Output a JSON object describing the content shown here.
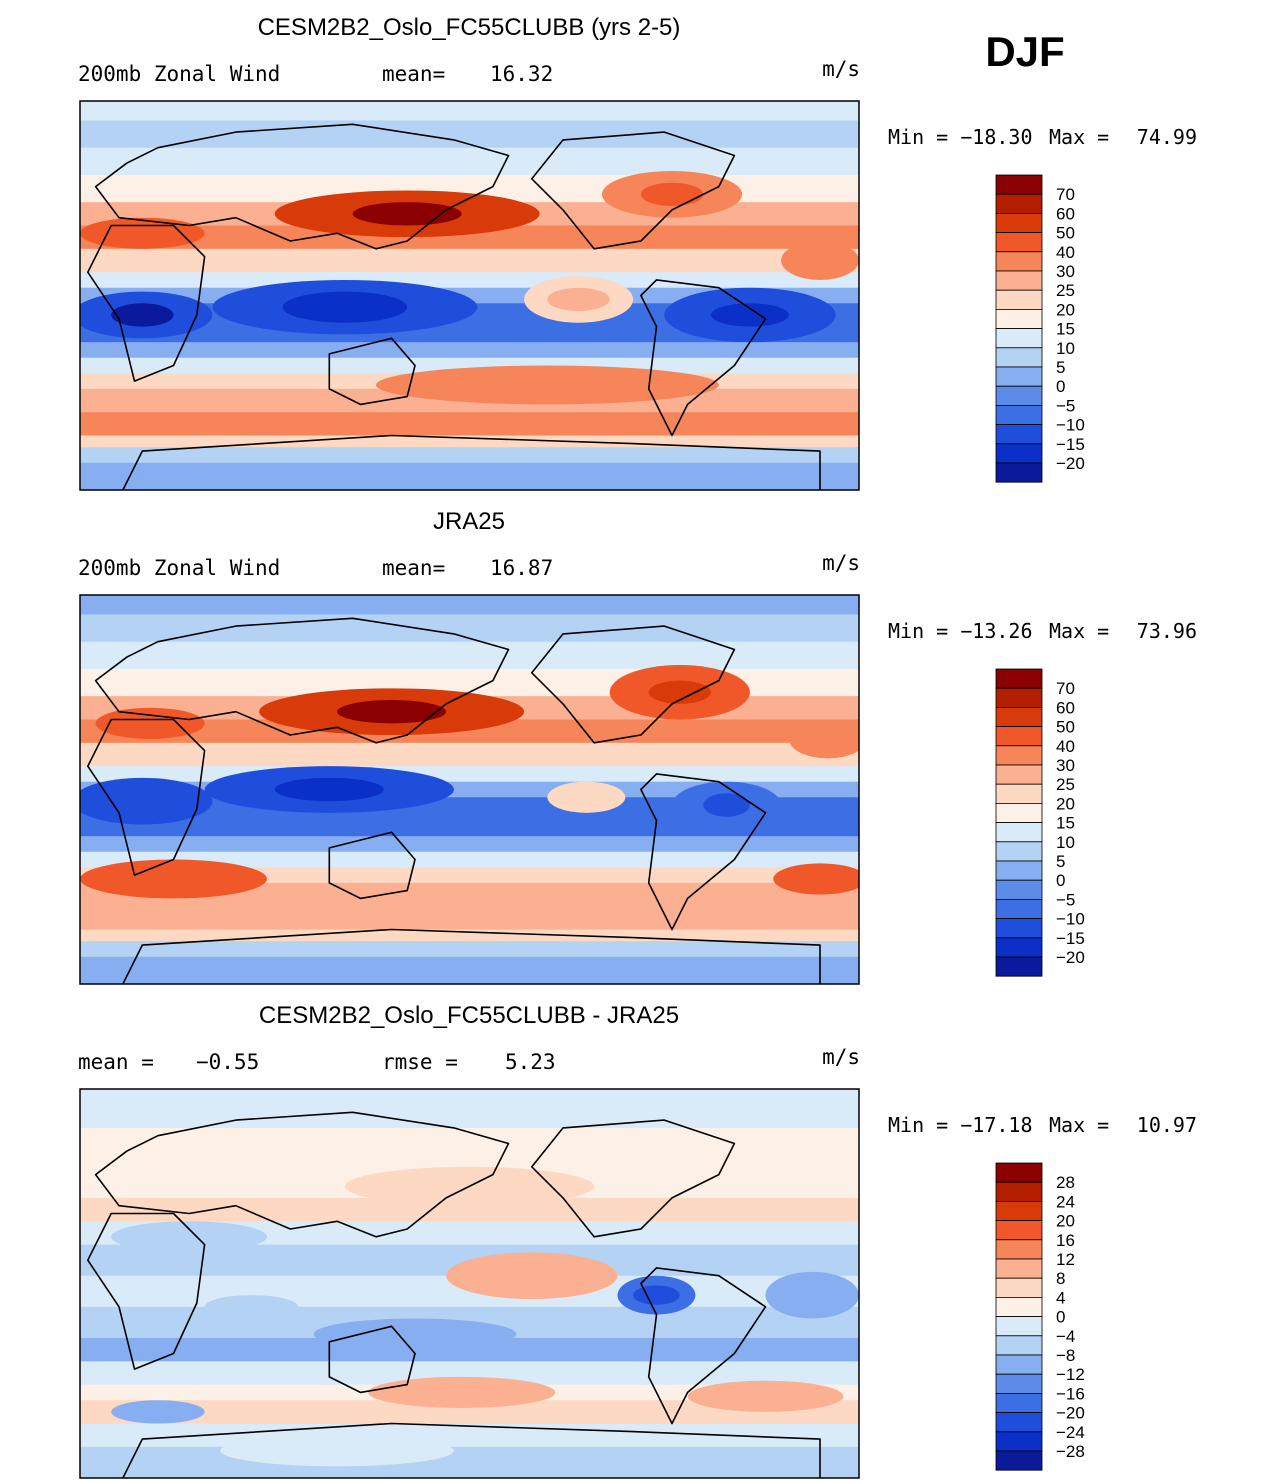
{
  "season": "DJF",
  "panels": [
    {
      "title": "CESM2B2_Oslo_FC55CLUBB (yrs 2-5)",
      "left_label": "200mb Zonal Wind",
      "stat_label": "mean=",
      "stat_value": "16.32",
      "units": "m/s",
      "min_label": "Min = −18.30",
      "max_label": "Max =",
      "max_value": "74.99"
    },
    {
      "title": "JRA25",
      "left_label": "200mb Zonal Wind",
      "stat_label": "mean=",
      "stat_value": "16.87",
      "units": "m/s",
      "min_label": "Min = −13.26",
      "max_label": "Max =",
      "max_value": "73.96"
    },
    {
      "title": "CESM2B2_Oslo_FC55CLUBB - JRA25",
      "left_label": "mean = ",
      "left_value": "−0.55",
      "stat_label": "rmse =",
      "stat_value": "5.23",
      "units": "m/s",
      "min_label": "Min = −17.18",
      "max_label": "Max =",
      "max_value": "10.97"
    }
  ],
  "chart_data": [
    {
      "type": "heatmap",
      "panel": "model",
      "variable": "200mb Zonal Wind",
      "units": "m/s",
      "mean": 16.32,
      "min": -18.3,
      "max": 74.99,
      "colorbar_levels": [
        "70",
        "60",
        "50",
        "40",
        "30",
        "25",
        "20",
        "15",
        "10",
        "5",
        "0",
        "−5",
        "−10",
        "−15",
        "−20"
      ],
      "colorbar_colors": [
        "#8b0000",
        "#b41e00",
        "#d93a0a",
        "#f0582a",
        "#f7855a",
        "#fbb092",
        "#fdd9c3",
        "#fdf0e6",
        "#d9eaf8",
        "#b4d2f4",
        "#87aef0",
        "#5c8ce8",
        "#3c6ee4",
        "#1f4edc",
        "#0a30c8",
        "#0a1a9a"
      ]
    },
    {
      "type": "heatmap",
      "panel": "observation",
      "variable": "200mb Zonal Wind",
      "units": "m/s",
      "mean": 16.87,
      "min": -13.26,
      "max": 73.96,
      "colorbar_levels": [
        "70",
        "60",
        "50",
        "40",
        "30",
        "25",
        "20",
        "15",
        "10",
        "5",
        "0",
        "−5",
        "−10",
        "−15",
        "−20"
      ],
      "colorbar_colors": [
        "#8b0000",
        "#b41e00",
        "#d93a0a",
        "#f0582a",
        "#f7855a",
        "#fbb092",
        "#fdd9c3",
        "#fdf0e6",
        "#d9eaf8",
        "#b4d2f4",
        "#87aef0",
        "#5c8ce8",
        "#3c6ee4",
        "#1f4edc",
        "#0a30c8",
        "#0a1a9a"
      ]
    },
    {
      "type": "heatmap",
      "panel": "difference",
      "variable": "200mb Zonal Wind",
      "units": "m/s",
      "mean": -0.55,
      "rmse": 5.23,
      "min": -17.18,
      "max": 10.97,
      "colorbar_levels": [
        "28",
        "24",
        "20",
        "16",
        "12",
        "8",
        "4",
        "0",
        "−4",
        "−8",
        "−12",
        "−16",
        "−20",
        "−24",
        "−28"
      ],
      "colorbar_colors": [
        "#8b0000",
        "#b41e00",
        "#d93a0a",
        "#f0582a",
        "#f7855a",
        "#fbb092",
        "#fdd9c3",
        "#fdf0e6",
        "#d9eaf8",
        "#b4d2f4",
        "#87aef0",
        "#5c8ce8",
        "#3c6ee4",
        "#1f4edc",
        "#0a30c8",
        "#0a1a9a"
      ]
    }
  ]
}
